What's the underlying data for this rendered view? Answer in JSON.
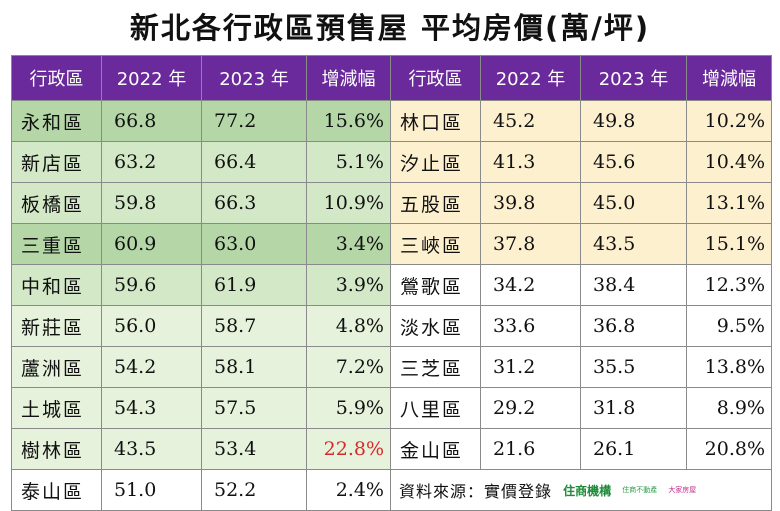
{
  "title": "新北各行政區預售屋 平均房價(萬/坪)",
  "headers": [
    "行政區",
    "2022 年",
    "2023 年",
    "增減幅",
    "行政區",
    "2022 年",
    "2023 年",
    "增減幅"
  ],
  "left_rows": [
    {
      "district": "永和區",
      "y2022": "66.8",
      "y2023": "77.2",
      "change": "15.6%"
    },
    {
      "district": "新店區",
      "y2022": "63.2",
      "y2023": "66.4",
      "change": "5.1%"
    },
    {
      "district": "板橋區",
      "y2022": "59.8",
      "y2023": "66.3",
      "change": "10.9%"
    },
    {
      "district": "三重區",
      "y2022": "60.9",
      "y2023": "63.0",
      "change": "3.4%"
    },
    {
      "district": "中和區",
      "y2022": "59.6",
      "y2023": "61.9",
      "change": "3.9%"
    },
    {
      "district": "新莊區",
      "y2022": "56.0",
      "y2023": "58.7",
      "change": "4.8%"
    },
    {
      "district": "蘆洲區",
      "y2022": "54.2",
      "y2023": "58.1",
      "change": "7.2%"
    },
    {
      "district": "土城區",
      "y2022": "54.3",
      "y2023": "57.5",
      "change": "5.9%"
    },
    {
      "district": "樹林區",
      "y2022": "43.5",
      "y2023": "53.4",
      "change": "22.8%"
    },
    {
      "district": "泰山區",
      "y2022": "51.0",
      "y2023": "52.2",
      "change": "2.4%"
    }
  ],
  "right_rows": [
    {
      "district": "林口區",
      "y2022": "45.2",
      "y2023": "49.8",
      "change": "10.2%"
    },
    {
      "district": "汐止區",
      "y2022": "41.3",
      "y2023": "45.6",
      "change": "10.4%"
    },
    {
      "district": "五股區",
      "y2022": "39.8",
      "y2023": "45.0",
      "change": "13.1%"
    },
    {
      "district": "三峽區",
      "y2022": "37.8",
      "y2023": "43.5",
      "change": "15.1%"
    },
    {
      "district": "鶯歌區",
      "y2022": "34.2",
      "y2023": "38.4",
      "change": "12.3%"
    },
    {
      "district": "淡水區",
      "y2022": "33.6",
      "y2023": "36.8",
      "change": "9.5%"
    },
    {
      "district": "三芝區",
      "y2022": "31.2",
      "y2023": "35.5",
      "change": "13.8%"
    },
    {
      "district": "八里區",
      "y2022": "29.2",
      "y2023": "31.8",
      "change": "8.9%"
    },
    {
      "district": "金山區",
      "y2022": "21.6",
      "y2023": "26.1",
      "change": "20.8%"
    }
  ],
  "source": {
    "label": "資料來源：實價登錄",
    "logo_main": "住商機構",
    "logo_secondary": "住商不動產",
    "logo_tertiary": "大家房屋"
  },
  "colors": {
    "header": "#6a2a9b",
    "green_strong": "#b5d7a8",
    "green_mid": "#d3e8c6",
    "green_light": "#e6f2dc",
    "yellow": "#fdf0cf",
    "highlight_red": "#d62a2a"
  }
}
